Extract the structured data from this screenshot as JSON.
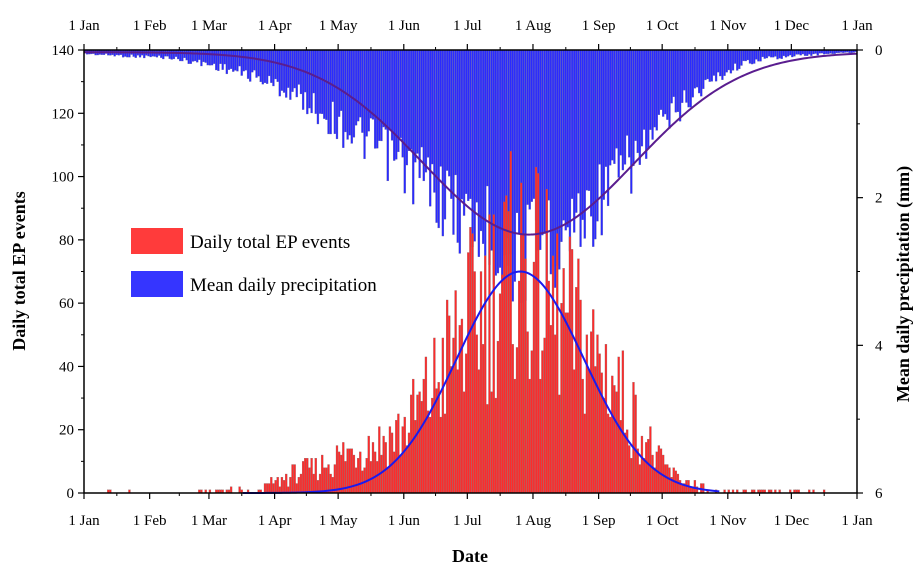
{
  "chart_data": {
    "type": "bar",
    "xlabel": "Date",
    "ylabel_left": "Daily total EP events",
    "ylabel_right": "Mean daily precipitation (mm)",
    "x_tick_labels": [
      "1 Jan",
      "1 Feb",
      "1 Mar",
      "1 Apr",
      "1 May",
      "1 Jun",
      "1 Jul",
      "1 Aug",
      "1 Sep",
      "1 Oct",
      "1 Nov",
      "1 Dec",
      "1 Jan"
    ],
    "x_tick_days": [
      0,
      31,
      59,
      90,
      120,
      151,
      181,
      212,
      243,
      273,
      304,
      334,
      365
    ],
    "ylim_left": [
      0,
      140
    ],
    "yticks_left": [
      0,
      20,
      40,
      60,
      80,
      100,
      120,
      140
    ],
    "ylim_right": [
      0,
      6
    ],
    "yticks_right": [
      0,
      2,
      4,
      6
    ],
    "right_axis_inverted": true,
    "legend": {
      "position": "center-left",
      "entries": [
        {
          "label": "Daily total EP events",
          "color": "#ff3b3b"
        },
        {
          "label": "Mean daily precipitation",
          "color": "#3535ff"
        }
      ]
    },
    "series": [
      {
        "name": "Daily total EP events",
        "kind": "bar",
        "axis": "left",
        "color": "#ff2a2a",
        "envelope_day_value": [
          [
            0,
            0
          ],
          [
            15,
            1
          ],
          [
            40,
            0
          ],
          [
            60,
            1
          ],
          [
            80,
            2
          ],
          [
            90,
            4
          ],
          [
            100,
            8
          ],
          [
            110,
            10
          ],
          [
            120,
            14
          ],
          [
            130,
            18
          ],
          [
            140,
            20
          ],
          [
            150,
            25
          ],
          [
            160,
            35
          ],
          [
            170,
            50
          ],
          [
            180,
            65
          ],
          [
            190,
            78
          ],
          [
            198,
            85
          ],
          [
            205,
            90
          ],
          [
            212,
            85
          ],
          [
            220,
            75
          ],
          [
            230,
            66
          ],
          [
            240,
            55
          ],
          [
            250,
            45
          ],
          [
            258,
            32
          ],
          [
            265,
            22
          ],
          [
            272,
            12
          ],
          [
            280,
            6
          ],
          [
            290,
            3
          ],
          [
            300,
            1
          ],
          [
            330,
            1
          ],
          [
            355,
            1
          ],
          [
            365,
            0
          ]
        ]
      },
      {
        "name": "Mean daily precipitation",
        "kind": "bar",
        "axis": "right",
        "color": "#2a2aff",
        "envelope_day_value": [
          [
            0,
            0.05
          ],
          [
            20,
            0.08
          ],
          [
            40,
            0.1
          ],
          [
            60,
            0.2
          ],
          [
            80,
            0.35
          ],
          [
            100,
            0.6
          ],
          [
            120,
            1.0
          ],
          [
            140,
            1.35
          ],
          [
            160,
            1.75
          ],
          [
            180,
            2.3
          ],
          [
            195,
            2.6
          ],
          [
            205,
            2.85
          ],
          [
            212,
            2.7
          ],
          [
            220,
            2.6
          ],
          [
            230,
            2.4
          ],
          [
            240,
            2.15
          ],
          [
            250,
            1.8
          ],
          [
            260,
            1.5
          ],
          [
            270,
            1.15
          ],
          [
            280,
            0.8
          ],
          [
            290,
            0.55
          ],
          [
            300,
            0.35
          ],
          [
            310,
            0.2
          ],
          [
            320,
            0.12
          ],
          [
            335,
            0.08
          ],
          [
            350,
            0.05
          ],
          [
            365,
            0.03
          ]
        ]
      },
      {
        "name": "EP events fit",
        "kind": "line",
        "axis": "left",
        "color": "#1a1aee",
        "peak_day": 206,
        "peak_value": 70,
        "sigma_days": 30
      },
      {
        "name": "Precipitation fit",
        "kind": "line",
        "axis": "right",
        "color": "#5a1d8f",
        "base_value": 0.03,
        "peak_day": 210,
        "peak_value": 2.5,
        "sigma_days": 50
      }
    ]
  }
}
